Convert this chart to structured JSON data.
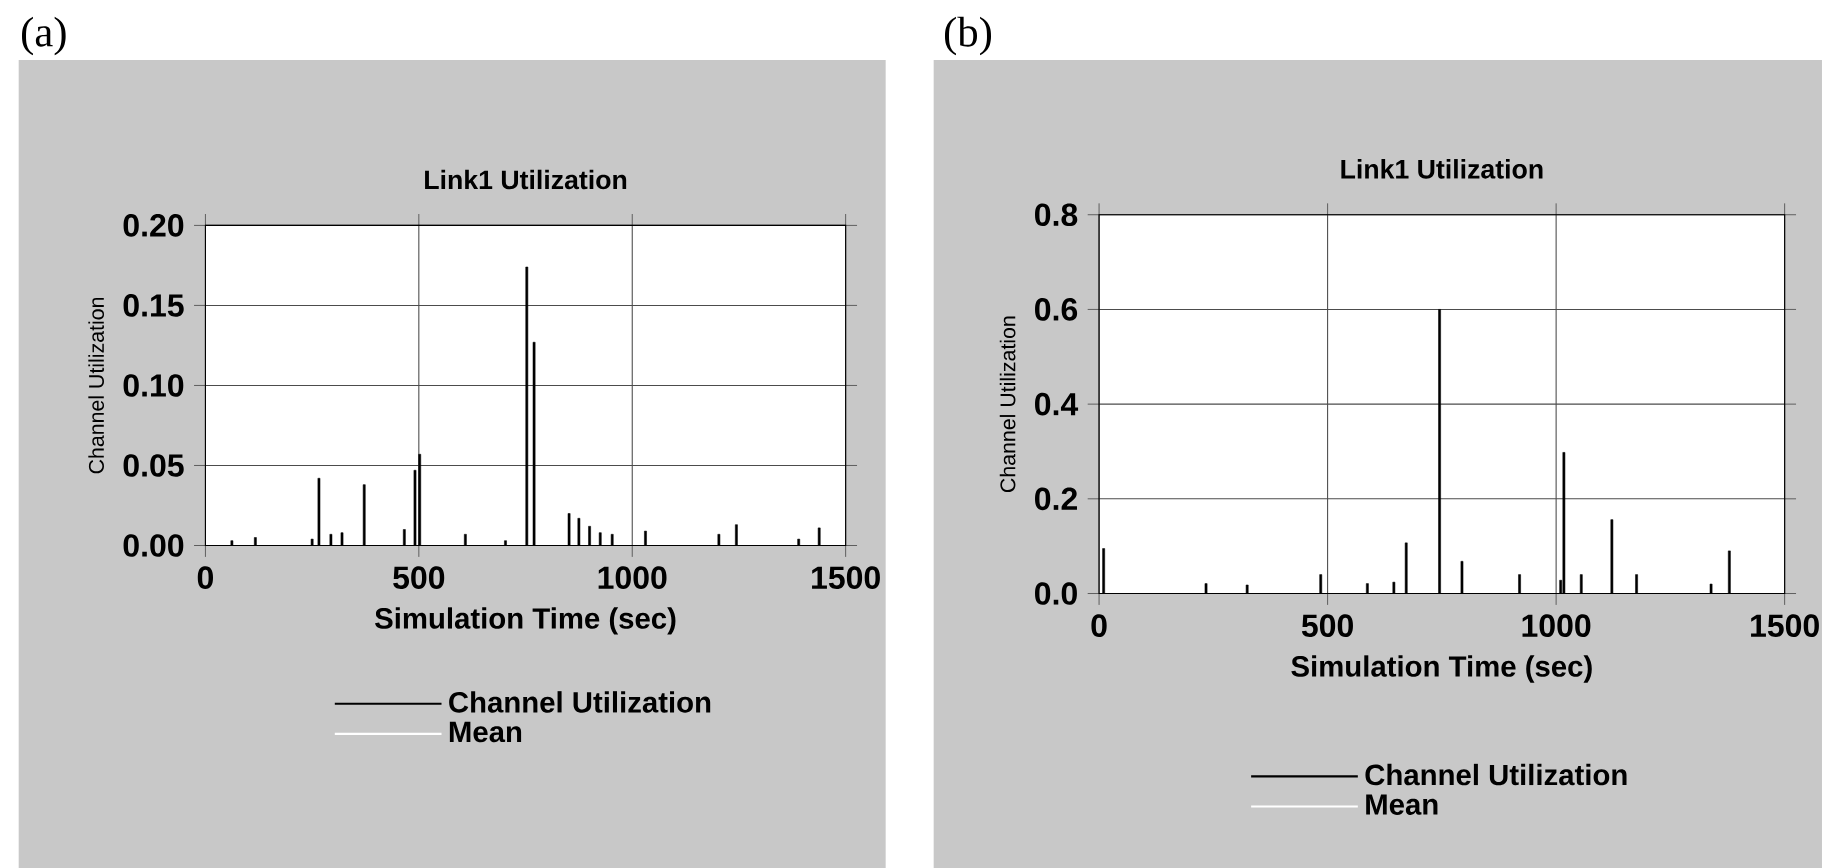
{
  "chart_data": [
    {
      "type": "bar",
      "title": "Link1 Utilization",
      "xlabel": "Simulation Time (sec)",
      "ylabel": "Channel Utilization",
      "annotations": [
        "(a)"
      ],
      "xlim": [
        0,
        1500
      ],
      "xticks": [
        0,
        500,
        1000,
        1500
      ],
      "ylim": [
        0,
        0.2
      ],
      "yticks": [
        {
          "value": 0,
          "label": "0.00"
        },
        {
          "value": 0.05,
          "label": "0.05"
        },
        {
          "value": 0.1,
          "label": "0.10"
        },
        {
          "value": 0.15,
          "label": "0.15"
        },
        {
          "value": 0.2,
          "label": "0.20"
        }
      ],
      "grid": true,
      "legend": "bottom",
      "series": [
        {
          "name": "Channel Utilization",
          "color": "#000000",
          "x": [
            62,
            117,
            250,
            266,
            294,
            320,
            372,
            466,
            491,
            502,
            609,
            703,
            753,
            770,
            852,
            875,
            900,
            925,
            953,
            1031,
            1203,
            1244,
            1390,
            1438
          ],
          "values": [
            0.003,
            0.005,
            0.004,
            0.042,
            0.007,
            0.008,
            0.038,
            0.01,
            0.047,
            0.057,
            0.007,
            0.003,
            0.174,
            0.127,
            0.02,
            0.017,
            0.012,
            0.008,
            0.007,
            0.009,
            0.007,
            0.013,
            0.004,
            0.011
          ]
        },
        {
          "name": "Mean",
          "color": "#ffffff"
        }
      ]
    },
    {
      "type": "bar",
      "title": "Link1 Utilization",
      "xlabel": "Simulation Time (sec)",
      "ylabel": "Channel Utilization",
      "annotations": [
        "(b)"
      ],
      "xlim": [
        0,
        1500
      ],
      "xticks": [
        0,
        500,
        1000,
        1500
      ],
      "ylim": [
        0,
        0.8
      ],
      "yticks": [
        {
          "value": 0,
          "label": "0.0"
        },
        {
          "value": 0.2,
          "label": "0.2"
        },
        {
          "value": 0.4,
          "label": "0.4"
        },
        {
          "value": 0.6,
          "label": "0.6"
        },
        {
          "value": 0.8,
          "label": "0.8"
        }
      ],
      "grid": true,
      "legend": "bottom",
      "series": [
        {
          "name": "Channel Utilization",
          "color": "#000000",
          "x": [
            10,
            234,
            324,
            485,
            587,
            645,
            672,
            745,
            794,
            920,
            1010,
            1017,
            1055,
            1122,
            1176,
            1339,
            1379
          ],
          "values": [
            0.095,
            0.021,
            0.018,
            0.04,
            0.021,
            0.024,
            0.107,
            0.6,
            0.068,
            0.04,
            0.028,
            0.298,
            0.04,
            0.156,
            0.04,
            0.02,
            0.09
          ]
        },
        {
          "name": "Mean",
          "color": "#ffffff"
        }
      ]
    }
  ]
}
